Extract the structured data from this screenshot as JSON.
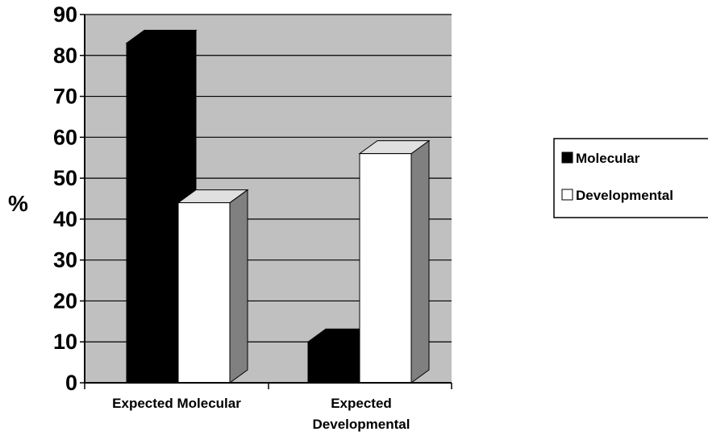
{
  "chart_data": {
    "type": "bar",
    "categories": [
      "Expected Molecular",
      "Expected Developmental"
    ],
    "category_lines": [
      [
        "Expected Molecular"
      ],
      [
        "Expected",
        "Developmental"
      ]
    ],
    "series": [
      {
        "name": "Molecular",
        "values": [
          83,
          10
        ],
        "color": "#000000"
      },
      {
        "name": "Developmental",
        "values": [
          44,
          56
        ],
        "color": "#ffffff"
      }
    ],
    "ylabel": "%",
    "ylim": [
      0,
      90
    ],
    "yticks": [
      0,
      10,
      20,
      30,
      40,
      50,
      60,
      70,
      80,
      90
    ],
    "grid": true,
    "legend_position": "right",
    "colors": {
      "plot_background": "#c0c0c0",
      "side_face": "#808080",
      "top_face_light": "#e0e0e0"
    }
  }
}
